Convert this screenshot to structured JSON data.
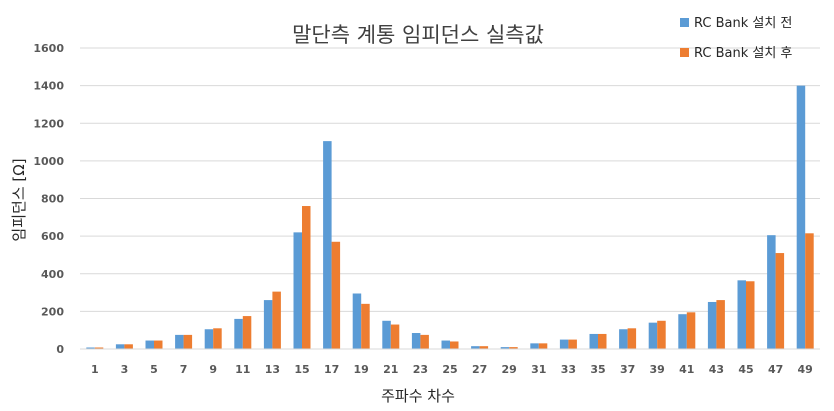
{
  "chart_data": {
    "type": "bar",
    "title": "말단측 계통 임피던스 실측값",
    "xlabel": "주파수 차수",
    "ylabel": "임피던스 [Ω]",
    "ylim": [
      0,
      1600
    ],
    "yticks": [
      "0",
      "200",
      "400",
      "600",
      "800",
      "1000",
      "1200",
      "1400",
      "1600"
    ],
    "grid": true,
    "legend_position": "top-right",
    "categories": [
      "1",
      "3",
      "5",
      "7",
      "9",
      "11",
      "13",
      "15",
      "17",
      "19",
      "21",
      "23",
      "25",
      "27",
      "29",
      "31",
      "33",
      "35",
      "37",
      "39",
      "41",
      "43",
      "45",
      "47",
      "49"
    ],
    "series": [
      {
        "name": "RC Bank 설치 전",
        "color": "#5B9BD5",
        "values": [
          8,
          25,
          45,
          75,
          105,
          160,
          260,
          620,
          1105,
          295,
          150,
          85,
          45,
          15,
          10,
          30,
          50,
          80,
          105,
          140,
          185,
          250,
          365,
          605,
          1400
        ]
      },
      {
        "name": "RC Bank 설치 후",
        "color": "#ED7D31",
        "values": [
          8,
          25,
          45,
          75,
          110,
          175,
          305,
          760,
          570,
          240,
          130,
          75,
          40,
          15,
          10,
          30,
          50,
          80,
          110,
          150,
          195,
          260,
          360,
          510,
          615
        ]
      }
    ]
  }
}
